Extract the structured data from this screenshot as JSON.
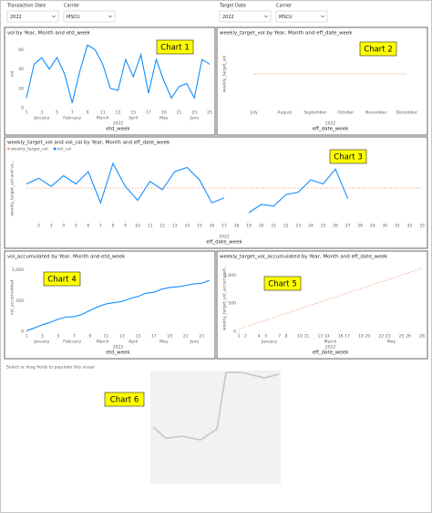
{
  "filters": [
    {
      "label": "Transaction Date",
      "value": "2022"
    },
    {
      "label": "Carrier",
      "value": "MSCU"
    },
    {
      "label": "Target Date",
      "value": "2022"
    },
    {
      "label": "Carrier",
      "value": "MSCU"
    }
  ],
  "placeholder": {
    "message": "Select or drag fields to populate this visual",
    "annotation": "Chart 6"
  },
  "chart_data": [
    {
      "type": "line",
      "title": "vol by Year, Month and etd_week",
      "annotation": "Chart 1",
      "x_label": "etd_week",
      "y_label": "vol",
      "x": [
        1,
        2,
        3,
        4,
        5,
        6,
        7,
        8,
        9,
        10,
        11,
        12,
        13,
        14,
        15,
        16,
        17,
        18,
        19,
        20,
        21,
        22,
        23,
        24,
        25
      ],
      "values": [
        10,
        45,
        52,
        40,
        52,
        35,
        5,
        38,
        65,
        60,
        45,
        20,
        18,
        50,
        32,
        55,
        15,
        50,
        28,
        10,
        22,
        25,
        10,
        50,
        45
      ],
      "color": "#118dff",
      "xlim": [
        1,
        25
      ],
      "xticks": [
        1,
        3,
        5,
        7,
        9,
        11,
        13,
        15,
        17,
        19,
        21,
        23,
        25
      ],
      "ylim": [
        0,
        70
      ],
      "yticks": [
        0,
        20,
        40,
        60
      ],
      "month_labels": [
        "January",
        "February",
        "March",
        "April",
        "May",
        "June"
      ],
      "year_label": "2022"
    },
    {
      "type": "line",
      "title": "weekly_target_vol by Year, Month and eff_date_week",
      "annotation": "Chart 2",
      "x_label": "eff_date_week",
      "y_label": "weekly_target_vol",
      "categories": [
        "July",
        "August",
        "September",
        "October",
        "November",
        "December"
      ],
      "values": [
        40,
        40,
        40,
        40,
        40,
        40
      ],
      "color": "#f4a582",
      "dashed": true,
      "ylim": [
        0,
        80
      ],
      "year_label": "2022"
    },
    {
      "type": "line",
      "title": "weekly_target_vol and vol_cal by Year, Month and eff_date_week",
      "annotation": "Chart 3",
      "x_label": "eff_date_week",
      "y_label": "weekly_target_vol and vo...",
      "x": [
        1,
        2,
        3,
        4,
        5,
        6,
        7,
        8,
        9,
        10,
        11,
        12,
        13,
        14,
        15,
        16,
        17,
        18,
        19,
        20,
        21,
        22,
        23,
        24,
        25,
        26,
        27,
        28,
        29,
        30,
        31,
        32,
        33
      ],
      "series": [
        {
          "name": "weekly_target_vol",
          "color": "#f4a582",
          "dashed": true,
          "values": [
            40,
            40,
            40,
            40,
            40,
            40,
            40,
            40,
            40,
            40,
            40,
            40,
            40,
            40,
            40,
            40,
            40,
            40,
            40,
            40,
            40,
            40,
            40,
            40,
            40,
            40,
            40,
            40,
            40,
            40,
            40,
            40,
            40
          ]
        },
        {
          "name": "vol_cal",
          "color": "#118dff",
          "values": [
            45,
            52,
            42,
            55,
            45,
            60,
            22,
            70,
            42,
            25,
            48,
            38,
            60,
            65,
            50,
            22,
            28,
            null,
            10,
            20,
            18,
            32,
            35,
            50,
            45,
            63,
            27,
            null,
            null,
            null,
            null,
            null,
            null
          ]
        }
      ],
      "xlim": [
        1,
        33
      ],
      "xticks": [
        2,
        3,
        4,
        5,
        6,
        7,
        8,
        9,
        10,
        11,
        12,
        13,
        14,
        15,
        16,
        17,
        18,
        19,
        20,
        21,
        22,
        23,
        24,
        25,
        26,
        27,
        28,
        29,
        30,
        31,
        32,
        33
      ],
      "ylim": [
        0,
        80
      ],
      "year_label": "2022"
    },
    {
      "type": "line",
      "title": "vol_accumulated by Year, Month and etd_week",
      "annotation": "Chart 4",
      "x_label": "etd_week",
      "y_label": "vol_accumulated",
      "x": [
        1,
        2,
        3,
        4,
        5,
        6,
        7,
        8,
        9,
        10,
        11,
        12,
        13,
        14,
        15,
        16,
        17,
        18,
        19,
        20,
        21,
        22,
        23,
        24
      ],
      "values": [
        10,
        55,
        107,
        147,
        199,
        234,
        239,
        277,
        342,
        402,
        447,
        467,
        485,
        535,
        567,
        622,
        637,
        687,
        715,
        725,
        747,
        772,
        782,
        832
      ],
      "color": "#118dff",
      "xlim": [
        1,
        24
      ],
      "xticks": [
        1,
        3,
        5,
        7,
        9,
        11,
        13,
        15,
        17,
        19,
        21,
        23
      ],
      "ylim": [
        0,
        1100
      ],
      "yticks": [
        0,
        500,
        {
          "value": 1000,
          "label": "1,000"
        }
      ],
      "month_labels": [
        "January",
        "February",
        "March",
        "April",
        "May",
        "June"
      ],
      "year_label": "2022"
    },
    {
      "type": "line",
      "title": "weekly_target_vol_accumulated by Year, Month and eff_date_week",
      "annotation": "Chart 5",
      "x_label": "eff_date_week",
      "y_label": "weekly_target_vol_accumulati...",
      "x": [
        1,
        2,
        3,
        4,
        5,
        6,
        7,
        8,
        9,
        10,
        11,
        12,
        13,
        14,
        15,
        16,
        17,
        18,
        19,
        20,
        21,
        22,
        23,
        24,
        25,
        26,
        27,
        28
      ],
      "values": [
        40,
        80,
        120,
        160,
        200,
        240,
        280,
        320,
        360,
        400,
        440,
        480,
        520,
        560,
        600,
        640,
        680,
        720,
        760,
        800,
        840,
        880,
        920,
        960,
        1000,
        1040,
        1080,
        1120
      ],
      "color": "#f4a582",
      "dashed": true,
      "xlim": [
        1,
        28
      ],
      "xticks": [
        1,
        2,
        4,
        5,
        7,
        8,
        10,
        11,
        13,
        14,
        16,
        17,
        19,
        20,
        22,
        23,
        25,
        26,
        28
      ],
      "ylim": [
        0,
        1200
      ],
      "yticks": [
        0,
        500,
        {
          "value": 1000,
          "label": "1,000"
        }
      ],
      "month_labels": [
        "January",
        "March",
        "May"
      ],
      "year_label": "2022"
    }
  ]
}
